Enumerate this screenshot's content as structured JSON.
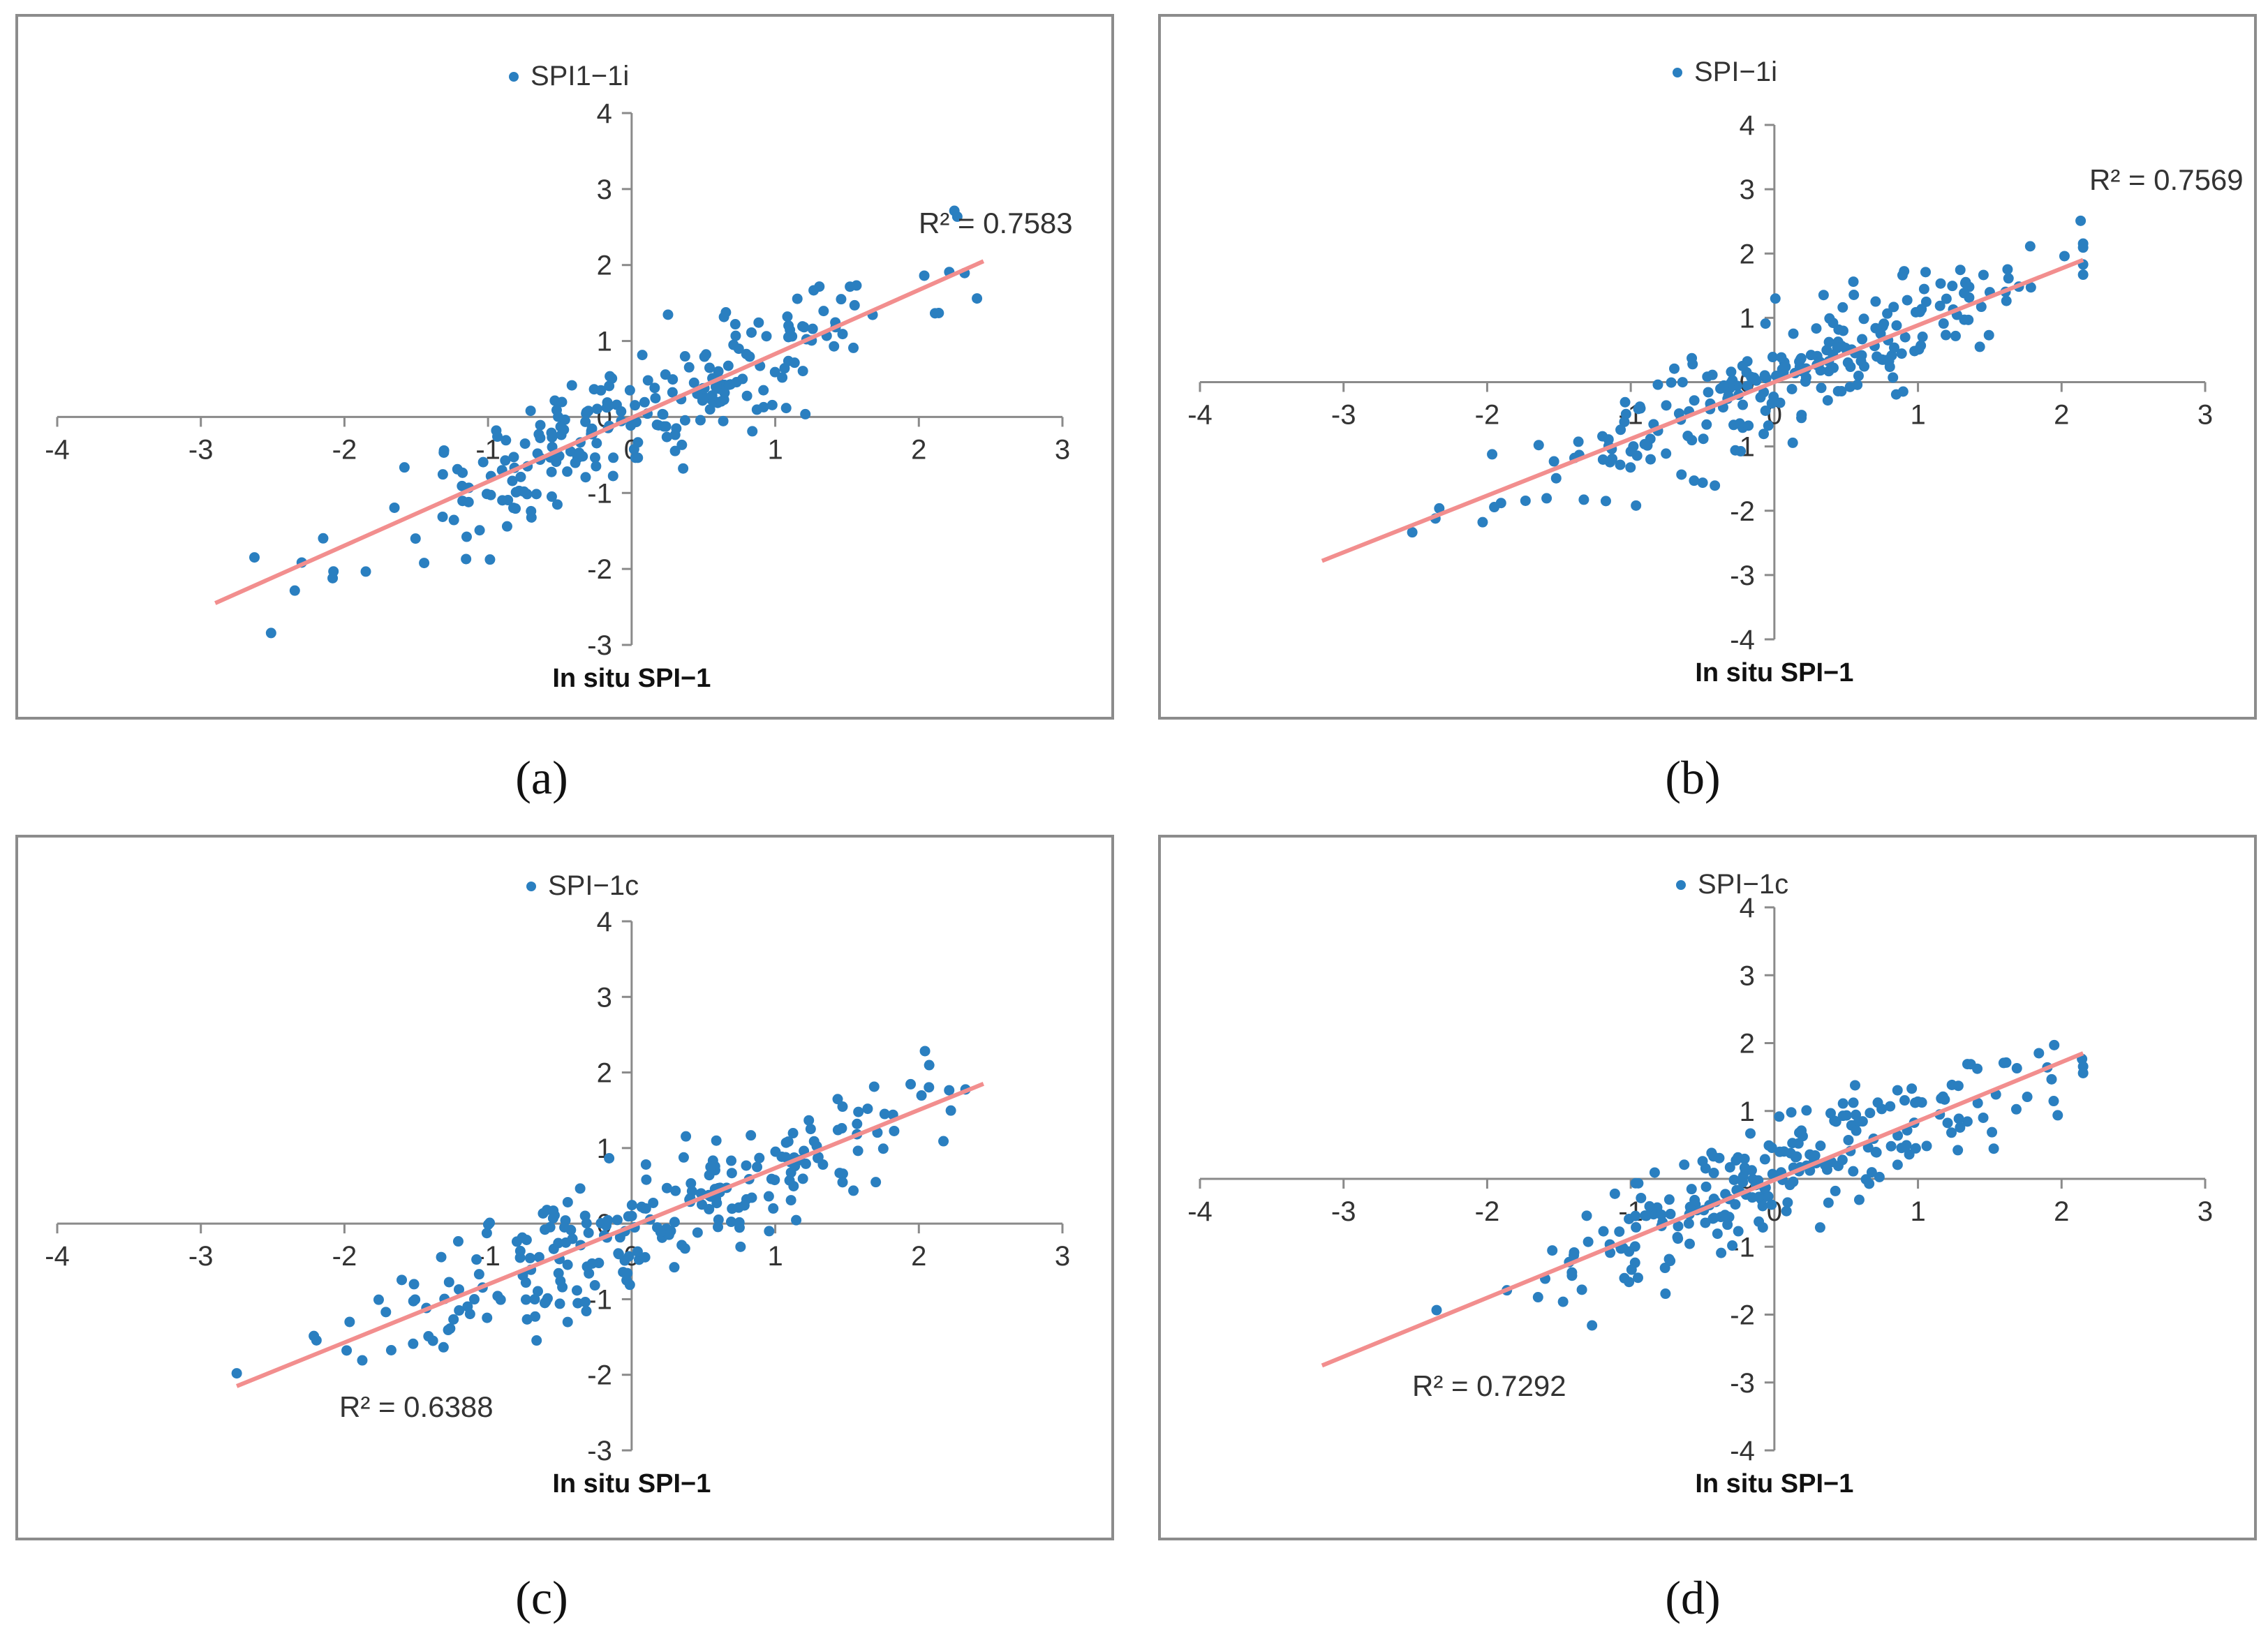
{
  "figure": {
    "captions": [
      "(a)",
      "(b)",
      "(c)",
      "(d)"
    ]
  },
  "chart_data": [
    {
      "type": "scatter",
      "id": "a",
      "legend": "SPI1−1i",
      "xlabel": "In situ SPI−1",
      "ylabel": "",
      "r2_label": "R² = 0.7583",
      "r2_position": "top-right",
      "xlim": [
        -4,
        3
      ],
      "ylim": [
        -3,
        4
      ],
      "xticks": [
        "-4",
        "-3",
        "-2",
        "-1",
        "0",
        "1",
        "2",
        "3"
      ],
      "yticks": [
        "-3",
        "-2",
        "-1",
        "0",
        "1",
        "2",
        "3",
        "4"
      ],
      "trendline": {
        "x": [
          -2.9,
          2.45
        ],
        "y": [
          -2.45,
          2.05
        ],
        "color": "#f28e8e"
      },
      "point_color": "#2a7fc0",
      "n_points": 240,
      "slope": 0.84,
      "seed": 11
    },
    {
      "type": "scatter",
      "id": "b",
      "legend": "SPI−1i",
      "xlabel": "In situ SPI−1",
      "ylabel": "",
      "r2_label": "R² = 0.7569",
      "r2_position": "top-right",
      "xlim": [
        -4,
        3
      ],
      "ylim": [
        -4,
        4
      ],
      "xticks": [
        "-4",
        "-3",
        "-2",
        "-1",
        "0",
        "1",
        "2",
        "3"
      ],
      "yticks": [
        "-4",
        "-3",
        "-2",
        "-1",
        "0",
        "1",
        "2",
        "3",
        "4"
      ],
      "trendline": {
        "x": [
          -3.15,
          2.15
        ],
        "y": [
          -2.78,
          1.9
        ],
        "color": "#f28e8e"
      },
      "point_color": "#2a7fc0",
      "n_points": 240,
      "slope": 0.88,
      "seed": 23
    },
    {
      "type": "scatter",
      "id": "c",
      "legend": "SPI−1c",
      "xlabel": "In situ SPI−1",
      "ylabel": "",
      "r2_label": "R² = 0.6388",
      "r2_position": "bottom-left",
      "xlim": [
        -4,
        3
      ],
      "ylim": [
        -3,
        4
      ],
      "xticks": [
        "-4",
        "-3",
        "-2",
        "-1",
        "0",
        "1",
        "2",
        "3"
      ],
      "yticks": [
        "-3",
        "-2",
        "-1",
        "0",
        "1",
        "2",
        "3",
        "4"
      ],
      "trendline": {
        "x": [
          -2.75,
          2.45
        ],
        "y": [
          -2.15,
          1.85
        ],
        "color": "#f28e8e"
      },
      "point_color": "#2a7fc0",
      "n_points": 240,
      "slope": 0.77,
      "seed": 37
    },
    {
      "type": "scatter",
      "id": "d",
      "legend": "SPI−1c",
      "xlabel": "In situ SPI−1",
      "ylabel": "",
      "r2_label": "R² = 0.7292",
      "r2_position": "bottom-left",
      "xlim": [
        -4,
        3
      ],
      "ylim": [
        -4,
        4
      ],
      "xticks": [
        "-4",
        "-3",
        "-2",
        "-1",
        "0",
        "1",
        "2",
        "3"
      ],
      "yticks": [
        "-4",
        "-3",
        "-2",
        "-1",
        "0",
        "1",
        "2",
        "3",
        "4"
      ],
      "trendline": {
        "x": [
          -3.15,
          2.15
        ],
        "y": [
          -2.75,
          1.85
        ],
        "color": "#f28e8e"
      },
      "point_color": "#2a7fc0",
      "n_points": 240,
      "slope": 0.87,
      "seed": 51
    }
  ]
}
